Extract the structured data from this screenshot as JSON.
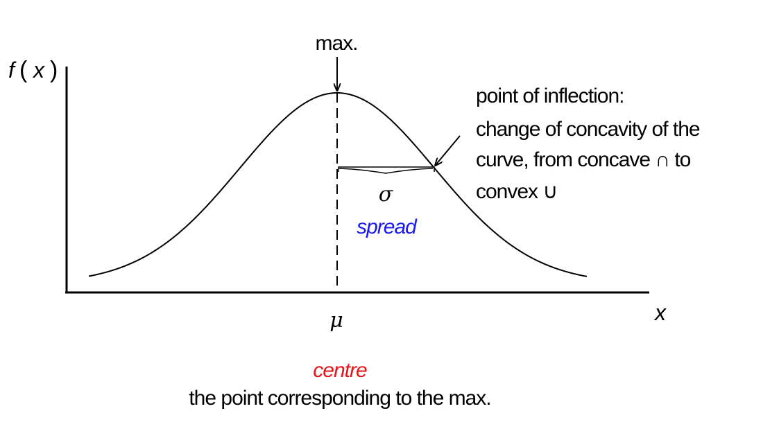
{
  "colors": {
    "red": "#e8131b",
    "blue": "#1b1bf0",
    "ink": "#000000"
  },
  "labels": {
    "y_axis": "f",
    "y_axis_arg": "x",
    "x_axis": "x",
    "mean_symbol": "μ",
    "sigma_symbol": "σ",
    "max": "max.",
    "spread": "spread",
    "inflection": [
      "point of inflection:",
      "change of concavity of the",
      "curve, from concave ∩ to",
      "convex ∪"
    ],
    "centre": "centre",
    "centre_desc": "the point corresponding to the max."
  }
}
